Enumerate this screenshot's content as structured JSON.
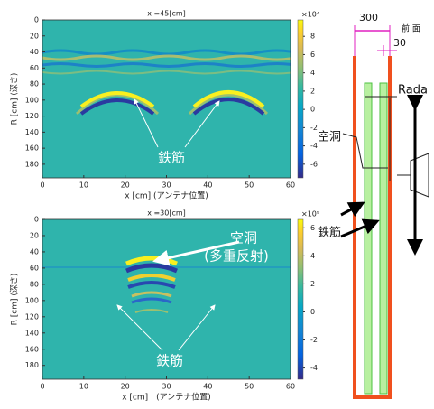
{
  "chart_data": [
    {
      "type": "heatmap",
      "title": "x =45[cm]",
      "xlabel": "x [cm] (アンテナ位置)",
      "ylabel": "R [cm] (深さ)",
      "xlim": [
        0,
        60
      ],
      "ylim": [
        0,
        197
      ],
      "y_inverted": true,
      "xticks": [
        0,
        10,
        20,
        30,
        40,
        50,
        60
      ],
      "yticks": [
        0,
        20,
        40,
        60,
        80,
        100,
        120,
        140,
        160,
        180
      ],
      "colorbar": {
        "clim": [
          -7.5,
          9.8
        ],
        "ticks": [
          -6,
          -4,
          -2,
          0,
          2,
          4,
          6,
          8
        ],
        "multiplier": "×10⁴"
      },
      "annotations": [
        "鉄筋"
      ]
    },
    {
      "type": "heatmap",
      "title": "x =30[cm]",
      "xlabel": "x [cm]　(アンテナ位置)",
      "ylabel": "R [cm] (深さ)",
      "xlim": [
        0,
        60
      ],
      "ylim": [
        0,
        197
      ],
      "y_inverted": true,
      "xticks": [
        0,
        10,
        20,
        30,
        40,
        50,
        60
      ],
      "yticks": [
        0,
        20,
        40,
        60,
        80,
        100,
        120,
        140,
        160,
        180
      ],
      "colorbar": {
        "clim": [
          -4.8,
          6.6
        ],
        "ticks": [
          -4,
          -2,
          0,
          2,
          4,
          6
        ],
        "multiplier": "×10⁵"
      },
      "annotations": [
        "空洞",
        "(多重反射)",
        "鉄筋"
      ]
    }
  ],
  "diagram": {
    "dim_outer": "300",
    "dim_inner": "30",
    "front": "前 面",
    "radar": "Rada",
    "cavity": "空洞",
    "rebar": "鉄筋"
  }
}
